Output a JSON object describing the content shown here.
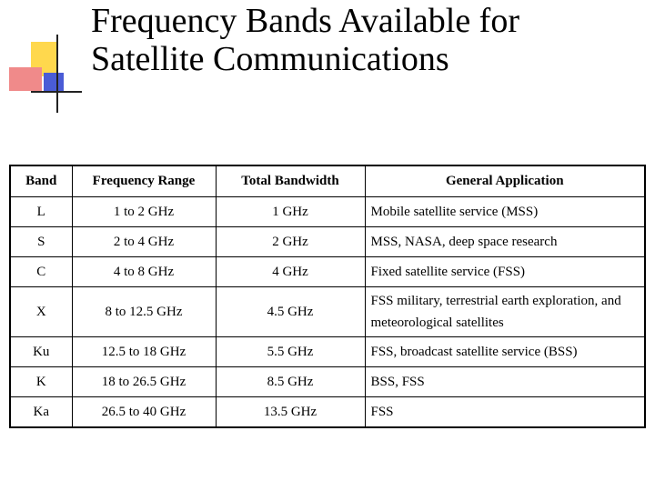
{
  "slide": {
    "title_line1": "Frequency Bands Available for",
    "title_line2": "Satellite Communications"
  },
  "table": {
    "headers": [
      "Band",
      "Frequency Range",
      "Total Bandwidth",
      "General Application"
    ],
    "rows": [
      {
        "band": "L",
        "range": "1 to 2 GHz",
        "bandwidth": "1 GHz",
        "application": "Mobile satellite service (MSS)"
      },
      {
        "band": "S",
        "range": "2 to 4 GHz",
        "bandwidth": "2 GHz",
        "application": "MSS, NASA, deep space research"
      },
      {
        "band": "C",
        "range": "4 to 8 GHz",
        "bandwidth": "4 GHz",
        "application": "Fixed satellite service (FSS)"
      },
      {
        "band": "X",
        "range": "8 to 12.5 GHz",
        "bandwidth": "4.5 GHz",
        "application": "FSS military, terrestrial earth exploration, and meteorological satellites"
      },
      {
        "band": "Ku",
        "range": "12.5 to 18 GHz",
        "bandwidth": "5.5 GHz",
        "application": "FSS, broadcast satellite service (BSS)"
      },
      {
        "band": "K",
        "range": "18 to 26.5 GHz",
        "bandwidth": "8.5 GHz",
        "application": "BSS, FSS"
      },
      {
        "band": "Ka",
        "range": "26.5 to 40 GHz",
        "bandwidth": "13.5 GHz",
        "application": "FSS"
      }
    ]
  }
}
